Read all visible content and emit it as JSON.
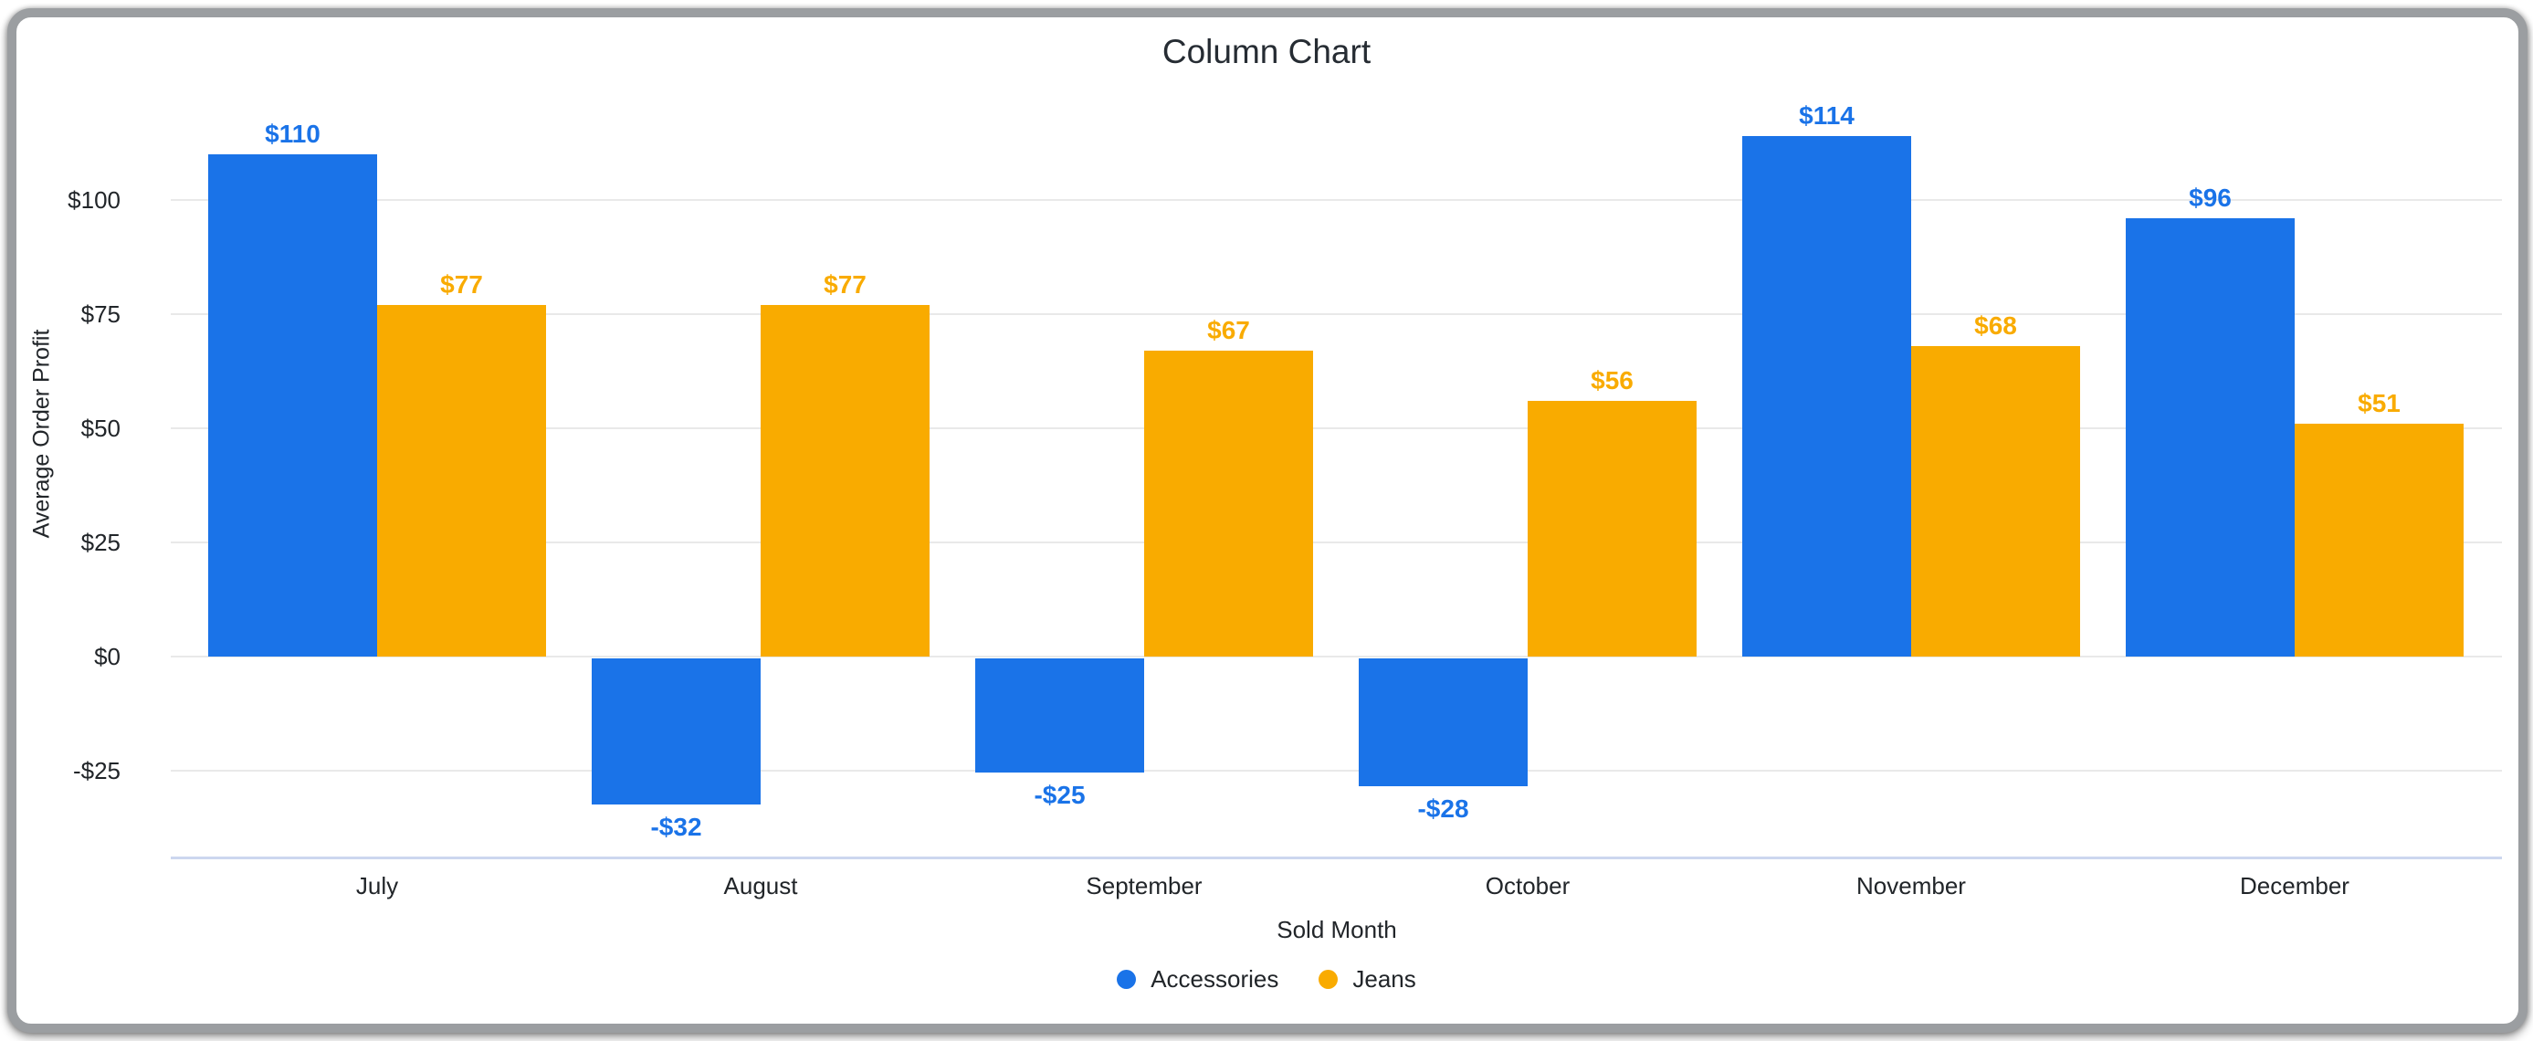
{
  "title": "Column Chart",
  "frame": {
    "border_color": "#9b9ea1",
    "background": "#ffffff"
  },
  "colors": {
    "accessories": "#1a73e8",
    "jeans": "#f9ab00",
    "gridline": "#e9e9e9",
    "baseline": "#ccd7ef",
    "text": "#212529"
  },
  "chart_data": {
    "type": "bar",
    "title": "Column Chart",
    "xlabel": "Sold Month",
    "ylabel": "Average Order Profit",
    "categories": [
      "July",
      "August",
      "September",
      "October",
      "November",
      "December"
    ],
    "series": [
      {
        "name": "Accessories",
        "color": "#1a73e8",
        "values": [
          110,
          -32,
          -25,
          -28,
          114,
          96
        ],
        "labels": [
          "$110",
          "-$32",
          "-$25",
          "-$28",
          "$114",
          "$96"
        ]
      },
      {
        "name": "Jeans",
        "color": "#f9ab00",
        "values": [
          77,
          77,
          67,
          56,
          68,
          51
        ],
        "labels": [
          "$77",
          "$77",
          "$67",
          "$56",
          "$68",
          "$51"
        ]
      }
    ],
    "y_ticks": [
      {
        "value": 100,
        "label": "$100"
      },
      {
        "value": 75,
        "label": "$75"
      },
      {
        "value": 50,
        "label": "$50"
      },
      {
        "value": 25,
        "label": "$25"
      },
      {
        "value": 0,
        "label": "$0"
      },
      {
        "value": -25,
        "label": "-$25"
      }
    ],
    "ylim": [
      -44,
      115
    ],
    "grid": true,
    "legend_position": "bottom"
  }
}
